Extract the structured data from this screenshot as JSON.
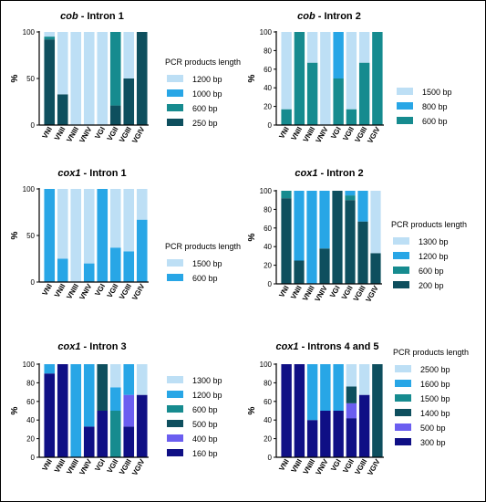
{
  "legend_heading": "PCR products length",
  "axis_label": "%",
  "chart_data": [
    {
      "type": "bar",
      "stacked": true,
      "title_gene": "cob",
      "title_rest": " - Intron 1",
      "categories": [
        "VNI",
        "VNII",
        "VNIII",
        "VNIV",
        "VGI",
        "VGII",
        "VGIII",
        "VGIV"
      ],
      "ylim": [
        0,
        100
      ],
      "yticks": [
        0,
        50,
        100
      ],
      "legend_placement": "right",
      "legend_heading": "PCR products length",
      "series": [
        {
          "name": "250 bp",
          "color": "#0e4f5e",
          "values": [
            92,
            33,
            0,
            0,
            0,
            21,
            50,
            100
          ]
        },
        {
          "name": "600 bp",
          "color": "#168b8f",
          "values": [
            3,
            0,
            0,
            0,
            0,
            79,
            0,
            0
          ]
        },
        {
          "name": "1000 bp",
          "color": "#28a6e6",
          "values": [
            0,
            0,
            0,
            0,
            0,
            0,
            0,
            0
          ]
        },
        {
          "name": "1200 bp",
          "color": "#bddff5",
          "values": [
            5,
            67,
            100,
            100,
            100,
            0,
            50,
            0
          ]
        }
      ]
    },
    {
      "type": "bar",
      "stacked": true,
      "title_gene": "cob",
      "title_rest": " - Intron 2",
      "categories": [
        "VNI",
        "VNII",
        "VNIII",
        "VNIV",
        "VGI",
        "VGII",
        "VGIII",
        "VGIV"
      ],
      "ylim": [
        0,
        100
      ],
      "yticks": [
        0,
        20,
        40,
        60,
        80,
        100
      ],
      "legend_placement": "right",
      "series": [
        {
          "name": "600 bp",
          "color": "#168b8f",
          "values": [
            17,
            100,
            67,
            0,
            50,
            17,
            67,
            100
          ]
        },
        {
          "name": "800 bp",
          "color": "#28a6e6",
          "values": [
            0,
            0,
            0,
            0,
            50,
            0,
            0,
            0
          ]
        },
        {
          "name": "1500 bp",
          "color": "#bddff5",
          "values": [
            83,
            0,
            33,
            100,
            0,
            83,
            33,
            0
          ]
        }
      ]
    },
    {
      "type": "bar",
      "stacked": true,
      "title_gene": "cox1",
      "title_rest": " - Intron 1",
      "categories": [
        "VNI",
        "VNII",
        "VNIII",
        "VNIV",
        "VGI",
        "VGII",
        "VGIII",
        "VGIV"
      ],
      "ylim": [
        0,
        100
      ],
      "yticks": [
        0,
        50,
        100
      ],
      "legend_placement": "right",
      "legend_heading": "PCR products length",
      "series": [
        {
          "name": "600 bp",
          "color": "#28a6e6",
          "values": [
            100,
            25,
            0,
            20,
            100,
            37,
            33,
            67
          ]
        },
        {
          "name": "1500 bp",
          "color": "#bddff5",
          "values": [
            0,
            75,
            100,
            80,
            0,
            63,
            67,
            33
          ]
        }
      ]
    },
    {
      "type": "bar",
      "stacked": true,
      "title_gene": "cox1",
      "title_rest": " - Intron 2",
      "categories": [
        "VNI",
        "VNII",
        "VNIII",
        "VNIV",
        "VGI",
        "VGII",
        "VGIII",
        "VGIV"
      ],
      "ylim": [
        0,
        100
      ],
      "yticks": [
        0,
        20,
        40,
        60,
        80,
        100
      ],
      "legend_placement": "right",
      "legend_heading": "PCR products length",
      "series": [
        {
          "name": "200 bp",
          "color": "#0e4f5e",
          "values": [
            92,
            25,
            0,
            38,
            100,
            90,
            67,
            33
          ]
        },
        {
          "name": "600 bp",
          "color": "#168b8f",
          "values": [
            8,
            0,
            0,
            0,
            0,
            5,
            0,
            0
          ]
        },
        {
          "name": "1200 bp",
          "color": "#28a6e6",
          "values": [
            0,
            75,
            100,
            62,
            0,
            5,
            33,
            0
          ]
        },
        {
          "name": "1300 bp",
          "color": "#bddff5",
          "values": [
            0,
            0,
            0,
            0,
            0,
            0,
            0,
            67
          ]
        }
      ]
    },
    {
      "type": "bar",
      "stacked": true,
      "title_gene": "cox1",
      "title_rest": " - Intron 3",
      "categories": [
        "VNI",
        "VNII",
        "VNIII",
        "VNIV",
        "VGI",
        "VGII",
        "VGIII",
        "VGIV"
      ],
      "ylim": [
        0,
        100
      ],
      "yticks": [
        0,
        20,
        40,
        60,
        80,
        100
      ],
      "legend_placement": "right",
      "series": [
        {
          "name": "160 bp",
          "color": "#0f0f85",
          "values": [
            90,
            100,
            0,
            33,
            50,
            0,
            33,
            67
          ]
        },
        {
          "name": "400 bp",
          "color": "#6b5ef0",
          "values": [
            0,
            0,
            0,
            0,
            0,
            0,
            34,
            0
          ]
        },
        {
          "name": "500 bp",
          "color": "#0e4f5e",
          "values": [
            0,
            0,
            0,
            0,
            50,
            0,
            0,
            0
          ]
        },
        {
          "name": "600 bp",
          "color": "#168b8f",
          "values": [
            0,
            0,
            0,
            0,
            0,
            50,
            0,
            0
          ]
        },
        {
          "name": "1200 bp",
          "color": "#28a6e6",
          "values": [
            10,
            0,
            100,
            67,
            0,
            25,
            33,
            0
          ]
        },
        {
          "name": "1300 bp",
          "color": "#bddff5",
          "values": [
            0,
            0,
            0,
            0,
            0,
            25,
            0,
            33
          ]
        }
      ]
    },
    {
      "type": "bar",
      "stacked": true,
      "title_gene": "cox1",
      "title_rest": " - Introns 4 and 5",
      "categories": [
        "VNI",
        "VNII",
        "VNIII",
        "VNIV",
        "VGI",
        "VGII",
        "VGIII",
        "VGIV"
      ],
      "ylim": [
        0,
        100
      ],
      "yticks": [
        0,
        20,
        40,
        60,
        80,
        100
      ],
      "legend_placement": "right",
      "legend_heading": "PCR products length",
      "series": [
        {
          "name": "300 bp",
          "color": "#0f0f85",
          "values": [
            100,
            100,
            40,
            50,
            50,
            42,
            67,
            0
          ]
        },
        {
          "name": "500 bp",
          "color": "#6b5ef0",
          "values": [
            0,
            0,
            0,
            0,
            0,
            16,
            0,
            0
          ]
        },
        {
          "name": "1400 bp",
          "color": "#0e4f5e",
          "values": [
            0,
            0,
            0,
            0,
            0,
            18,
            0,
            100
          ]
        },
        {
          "name": "1500 bp",
          "color": "#168b8f",
          "values": [
            0,
            0,
            0,
            0,
            0,
            0,
            0,
            0
          ]
        },
        {
          "name": "1600 bp",
          "color": "#28a6e6",
          "values": [
            0,
            0,
            60,
            50,
            50,
            0,
            0,
            0
          ]
        },
        {
          "name": "2500 bp",
          "color": "#bddff5",
          "values": [
            0,
            0,
            0,
            0,
            0,
            24,
            33,
            0
          ]
        }
      ]
    }
  ]
}
